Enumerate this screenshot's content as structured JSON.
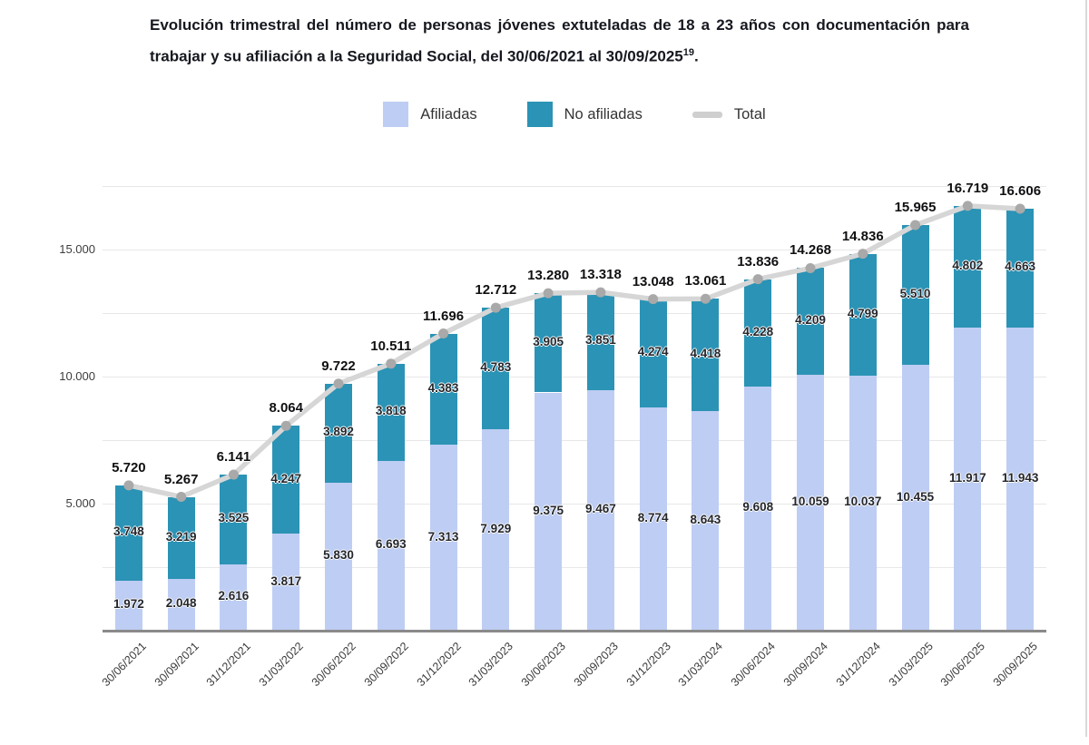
{
  "header": {
    "title_text": "Evolución trimestral del número de personas jóvenes extuteladas de 18 a 23 años con documentación para trabajar y su afiliación a la Seguridad Social, del 30/06/2021 al 30/09/2025",
    "title_superscript": "19",
    "title_suffix": "."
  },
  "legend": {
    "items": [
      {
        "label": "Afiliadas",
        "type": "square",
        "color": "#becdf3"
      },
      {
        "label": "No afiliadas",
        "type": "square",
        "color": "#2b93b5"
      },
      {
        "label": "Total",
        "type": "line",
        "color": "#cfcfcf"
      }
    ]
  },
  "chart_data": {
    "type": "bar",
    "stacked": true,
    "grid": true,
    "legend_position": "top",
    "title": "Evolución trimestral del número de personas jóvenes extuteladas de 18 a 23 años con documentación para trabajar y su afiliación a la Seguridad Social, del 30/06/2021 al 30/09/2025",
    "xlabel": "",
    "ylabel": "",
    "ylim": [
      0,
      17500
    ],
    "gridline_step": 2500,
    "y_ticks": [
      {
        "value": 5000,
        "label": "5.000"
      },
      {
        "value": 10000,
        "label": "10.000"
      },
      {
        "value": 15000,
        "label": "15.000"
      }
    ],
    "categories": [
      "30/06/2021",
      "30/09/2021",
      "31/12/2021",
      "31/03/2022",
      "30/06/2022",
      "30/09/2022",
      "31/12/2022",
      "31/03/2023",
      "30/06/2023",
      "30/09/2023",
      "31/12/2023",
      "31/03/2024",
      "30/06/2024",
      "30/09/2024",
      "31/12/2024",
      "31/03/2025",
      "30/06/2025",
      "30/09/2025"
    ],
    "series": [
      {
        "name": "Afiliadas",
        "color": "#becdf3",
        "values": [
          1972,
          2048,
          2616,
          3817,
          5830,
          6693,
          7313,
          7929,
          9375,
          9467,
          8774,
          8643,
          9608,
          10059,
          10037,
          10455,
          11917,
          11943
        ]
      },
      {
        "name": "No afiliadas",
        "color": "#2b93b5",
        "values": [
          3748,
          3219,
          3525,
          4247,
          3892,
          3818,
          4383,
          4783,
          3905,
          3851,
          4274,
          4418,
          4228,
          4209,
          4799,
          5510,
          4802,
          4663
        ]
      }
    ],
    "line_series": {
      "name": "Total",
      "color": "#d6d6d6",
      "marker_color": "#a9a9a9",
      "values": [
        5720,
        5267,
        6141,
        8064,
        9722,
        10511,
        11696,
        12712,
        13280,
        13318,
        13048,
        13061,
        13836,
        14268,
        14836,
        15965,
        16719,
        16606
      ]
    }
  }
}
